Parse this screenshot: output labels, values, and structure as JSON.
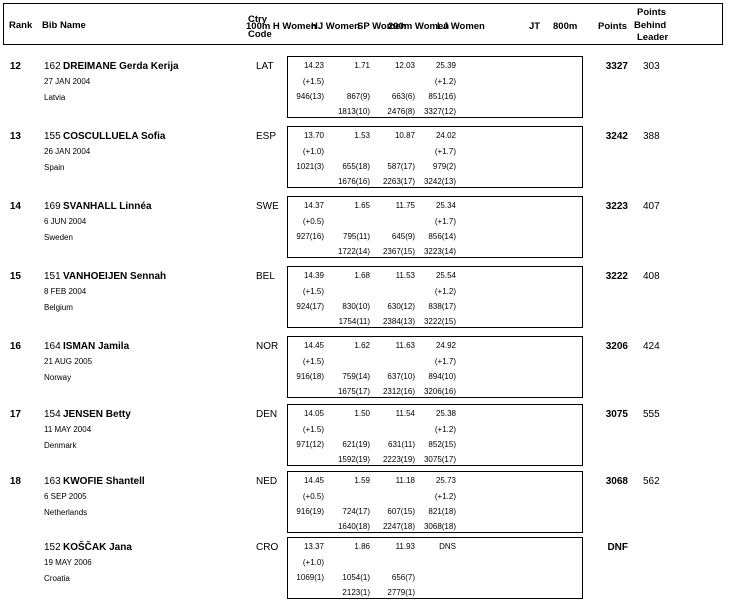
{
  "header": {
    "rank": "Rank",
    "bib_name": "Bib Name",
    "ctry": "Ctry",
    "code": "Code",
    "e100mh": "100m H Women",
    "ehj": "HJ Women",
    "esp": "SP Women",
    "e200m": "200m Women",
    "elj": "LJ Women",
    "ejt": "JT",
    "e800m": "800m",
    "points": "Points",
    "behind1": "Points",
    "behind2": "Behind",
    "behind3": "Leader"
  },
  "athletes": [
    {
      "rank": "12",
      "bib": "162",
      "name": "DREIMANE Gerda Kerija",
      "birth": "27 JAN 2004",
      "country": "Latvia",
      "code": "LAT",
      "results": [
        {
          "mark": "14.23",
          "wind": "(+1.5)",
          "pts": "946(13)",
          "cum": ""
        },
        {
          "mark": "1.71",
          "wind": "",
          "pts": "867(9)",
          "cum": "1813(10)"
        },
        {
          "mark": "12.03",
          "wind": "",
          "pts": "663(6)",
          "cum": "2476(8)"
        },
        {
          "mark": "25.39",
          "wind": "(+1.2)",
          "pts": "851(16)",
          "cum": "3327(12)"
        }
      ],
      "total": "3327",
      "behind": "303"
    },
    {
      "rank": "13",
      "bib": "155",
      "name": "COSCULLUELA Sofia",
      "birth": "26 JAN 2004",
      "country": "Spain",
      "code": "ESP",
      "results": [
        {
          "mark": "13.70",
          "wind": "(+1.0)",
          "pts": "1021(3)",
          "cum": ""
        },
        {
          "mark": "1.53",
          "wind": "",
          "pts": "655(18)",
          "cum": "1676(16)"
        },
        {
          "mark": "10.87",
          "wind": "",
          "pts": "587(17)",
          "cum": "2263(17)"
        },
        {
          "mark": "24.02",
          "wind": "(+1.7)",
          "pts": "979(2)",
          "cum": "3242(13)"
        }
      ],
      "total": "3242",
      "behind": "388"
    },
    {
      "rank": "14",
      "bib": "169",
      "name": "SVANHALL Linnéa",
      "birth": "6 JUN 2004",
      "country": "Sweden",
      "code": "SWE",
      "results": [
        {
          "mark": "14.37",
          "wind": "(+0.5)",
          "pts": "927(16)",
          "cum": ""
        },
        {
          "mark": "1.65",
          "wind": "",
          "pts": "795(11)",
          "cum": "1722(14)"
        },
        {
          "mark": "11.75",
          "wind": "",
          "pts": "645(9)",
          "cum": "2367(15)"
        },
        {
          "mark": "25.34",
          "wind": "(+1.7)",
          "pts": "856(14)",
          "cum": "3223(14)"
        }
      ],
      "total": "3223",
      "behind": "407"
    },
    {
      "rank": "15",
      "bib": "151",
      "name": "VANHOEIJEN Sennah",
      "birth": "8 FEB 2004",
      "country": "Belgium",
      "code": "BEL",
      "results": [
        {
          "mark": "14.39",
          "wind": "(+1.5)",
          "pts": "924(17)",
          "cum": ""
        },
        {
          "mark": "1.68",
          "wind": "",
          "pts": "830(10)",
          "cum": "1754(11)"
        },
        {
          "mark": "11.53",
          "wind": "",
          "pts": "630(12)",
          "cum": "2384(13)"
        },
        {
          "mark": "25.54",
          "wind": "(+1.2)",
          "pts": "838(17)",
          "cum": "3222(15)"
        }
      ],
      "total": "3222",
      "behind": "408"
    },
    {
      "rank": "16",
      "bib": "164",
      "name": "ISMAN Jamila",
      "birth": "21 AUG 2005",
      "country": "Norway",
      "code": "NOR",
      "results": [
        {
          "mark": "14.45",
          "wind": "(+1.5)",
          "pts": "916(18)",
          "cum": ""
        },
        {
          "mark": "1.62",
          "wind": "",
          "pts": "759(14)",
          "cum": "1675(17)"
        },
        {
          "mark": "11.63",
          "wind": "",
          "pts": "637(10)",
          "cum": "2312(16)"
        },
        {
          "mark": "24.92",
          "wind": "(+1.7)",
          "pts": "894(10)",
          "cum": "3206(16)"
        }
      ],
      "total": "3206",
      "behind": "424"
    },
    {
      "rank": "17",
      "bib": "154",
      "name": "JENSEN Betty",
      "birth": "11 MAY 2004",
      "country": "Denmark",
      "code": "DEN",
      "results": [
        {
          "mark": "14.05",
          "wind": "(+1.5)",
          "pts": "971(12)",
          "cum": ""
        },
        {
          "mark": "1.50",
          "wind": "",
          "pts": "621(19)",
          "cum": "1592(19)"
        },
        {
          "mark": "11.54",
          "wind": "",
          "pts": "631(11)",
          "cum": "2223(19)"
        },
        {
          "mark": "25.38",
          "wind": "(+1.2)",
          "pts": "852(15)",
          "cum": "3075(17)"
        }
      ],
      "total": "3075",
      "behind": "555"
    },
    {
      "rank": "18",
      "bib": "163",
      "name": "KWOFIE Shantell",
      "birth": "6 SEP 2005",
      "country": "Netherlands",
      "code": "NED",
      "results": [
        {
          "mark": "14.45",
          "wind": "(+0.5)",
          "pts": "916(19)",
          "cum": ""
        },
        {
          "mark": "1.59",
          "wind": "",
          "pts": "724(17)",
          "cum": "1640(18)"
        },
        {
          "mark": "11.18",
          "wind": "",
          "pts": "607(15)",
          "cum": "2247(18)"
        },
        {
          "mark": "25.73",
          "wind": "(+1.2)",
          "pts": "821(18)",
          "cum": "3068(18)"
        }
      ],
      "total": "3068",
      "behind": "562"
    },
    {
      "rank": "",
      "bib": "152",
      "name": "KOŠČAK Jana",
      "birth": "19 MAY 2006",
      "country": "Croatia",
      "code": "CRO",
      "results": [
        {
          "mark": "13.37",
          "wind": "(+1.0)",
          "pts": "1069(1)",
          "cum": ""
        },
        {
          "mark": "1.86",
          "wind": "",
          "pts": "1054(1)",
          "cum": "2123(1)"
        },
        {
          "mark": "11.93",
          "wind": "",
          "pts": "656(7)",
          "cum": "2779(1)"
        },
        {
          "mark": "DNS",
          "wind": "",
          "pts": "",
          "cum": ""
        }
      ],
      "total": "DNF",
      "behind": ""
    }
  ]
}
